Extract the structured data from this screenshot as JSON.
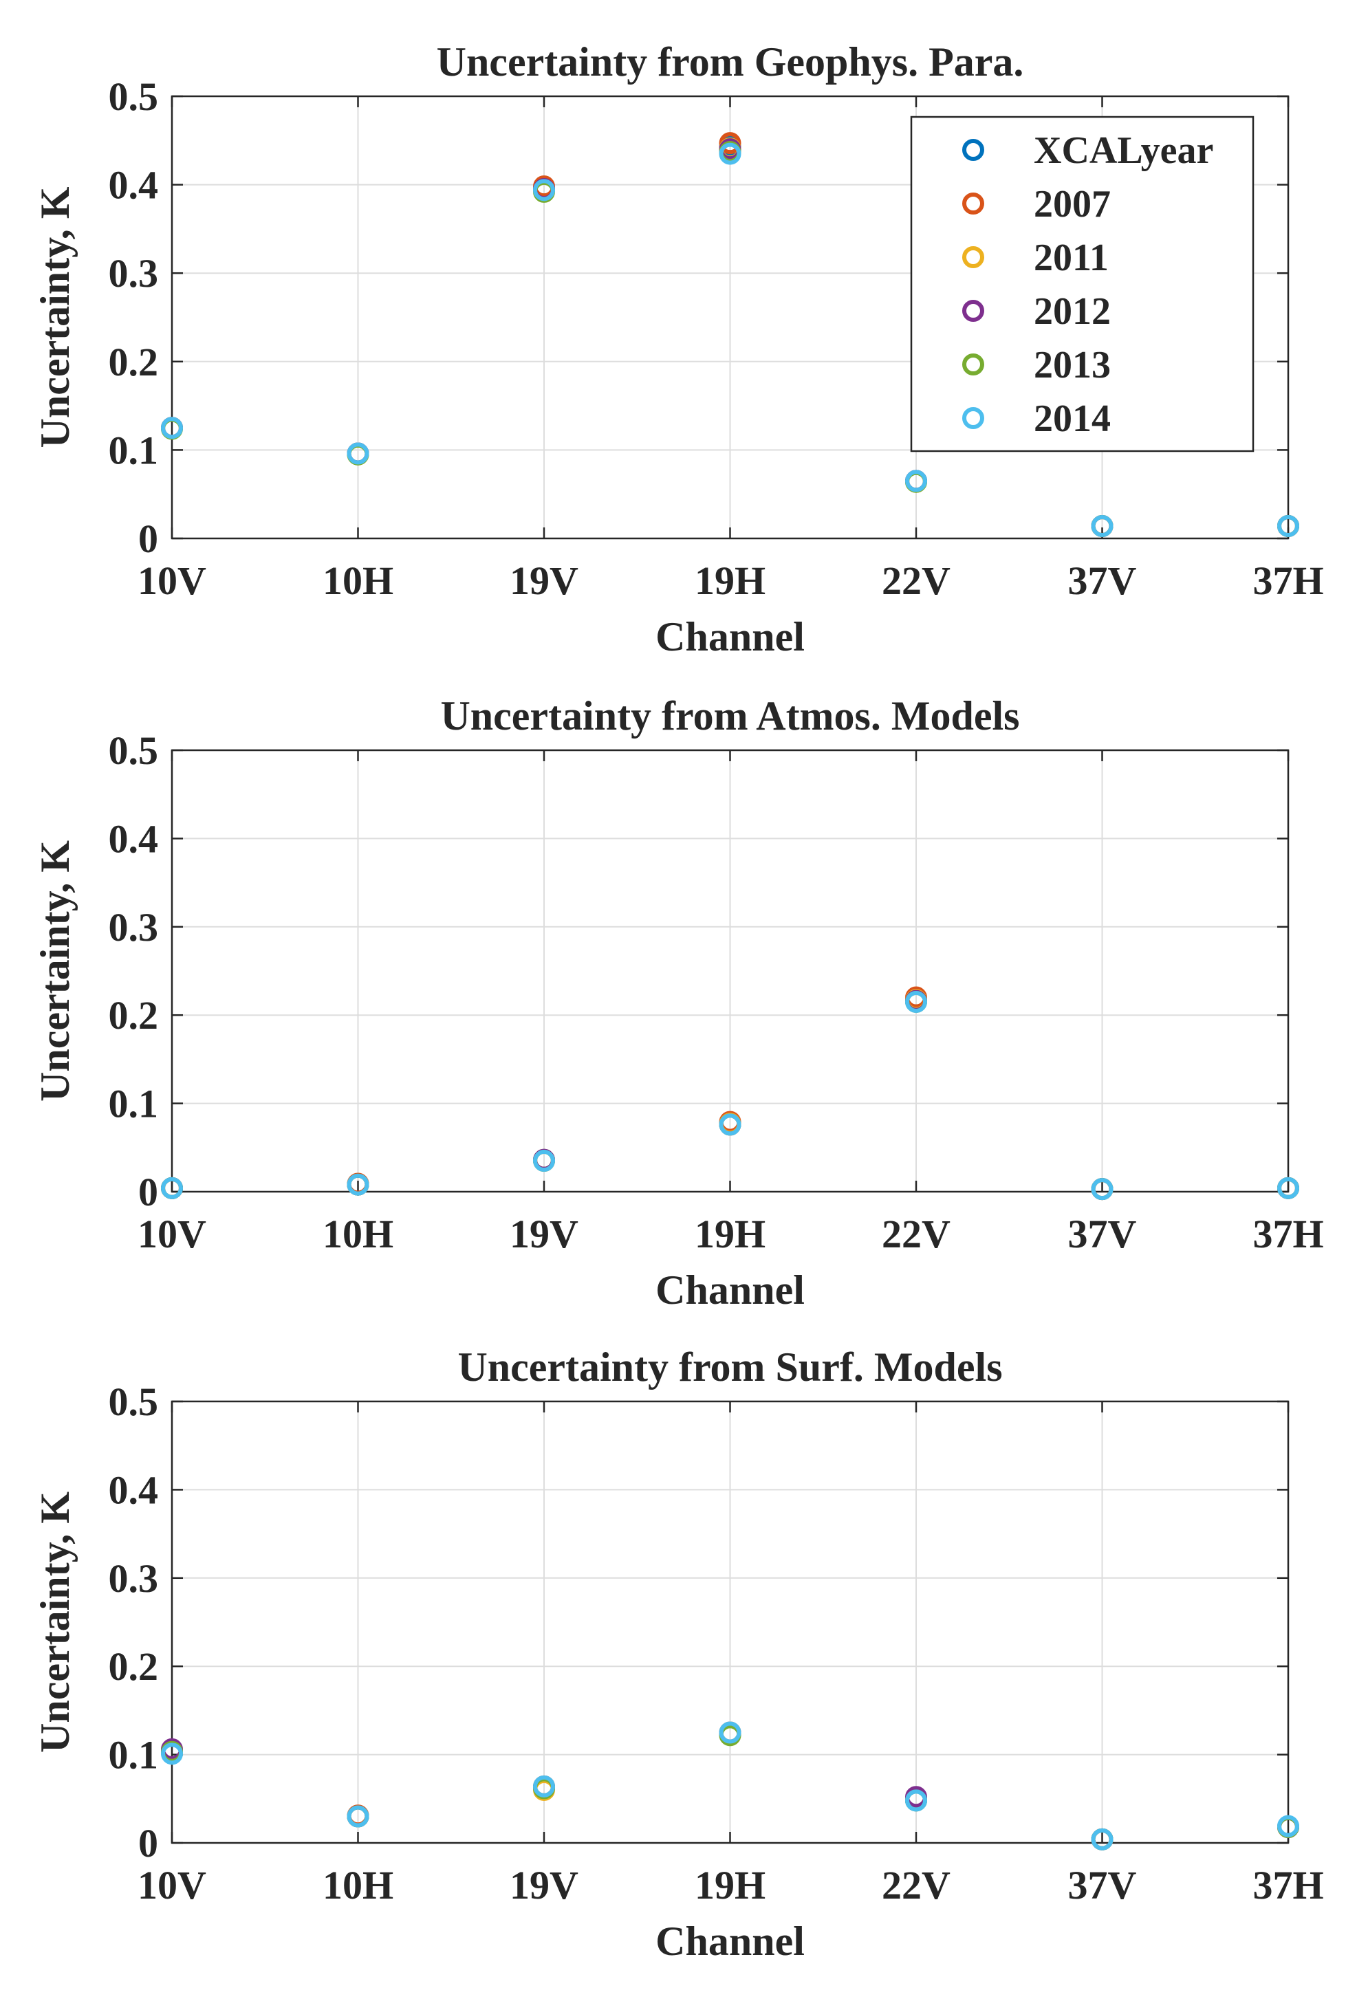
{
  "chart_data": [
    {
      "type": "scatter",
      "title": "Uncertainty from Geophys. Para.",
      "xlabel": "Channel",
      "ylabel": "Uncertainty, K",
      "categories": [
        "10V",
        "10H",
        "19V",
        "19H",
        "22V",
        "37V",
        "37H"
      ],
      "ylim": [
        0,
        0.5
      ],
      "yticks": [
        "0",
        "0.1",
        "0.2",
        "0.3",
        "0.4",
        "0.5"
      ],
      "grid": true,
      "legend": "top-right",
      "series": [
        {
          "name": "XCALyear",
          "color": "#0072BD",
          "values": [
            0.125,
            0.096,
            0.395,
            0.443,
            0.065,
            0.014,
            0.014
          ]
        },
        {
          "name": "2007",
          "color": "#D95319",
          "values": [
            0.125,
            0.096,
            0.398,
            0.447,
            0.065,
            0.014,
            0.014
          ]
        },
        {
          "name": "2011",
          "color": "#EDB120",
          "values": [
            0.125,
            0.095,
            0.394,
            0.441,
            0.064,
            0.014,
            0.014
          ]
        },
        {
          "name": "2012",
          "color": "#7E2F8E",
          "values": [
            0.125,
            0.096,
            0.395,
            0.44,
            0.065,
            0.014,
            0.014
          ]
        },
        {
          "name": "2013",
          "color": "#77AC30",
          "values": [
            0.124,
            0.095,
            0.392,
            0.437,
            0.064,
            0.014,
            0.014
          ]
        },
        {
          "name": "2014",
          "color": "#4DBEEE",
          "values": [
            0.125,
            0.096,
            0.394,
            0.435,
            0.065,
            0.014,
            0.014
          ]
        }
      ]
    },
    {
      "type": "scatter",
      "title": "Uncertainty from Atmos. Models",
      "xlabel": "Channel",
      "ylabel": "Uncertainty, K",
      "categories": [
        "10V",
        "10H",
        "19V",
        "19H",
        "22V",
        "37V",
        "37H"
      ],
      "ylim": [
        0,
        0.5
      ],
      "yticks": [
        "0",
        "0.1",
        "0.2",
        "0.3",
        "0.4",
        "0.5"
      ],
      "grid": true,
      "series": [
        {
          "name": "XCALyear",
          "color": "#0072BD",
          "values": [
            0.004,
            0.008,
            0.036,
            0.077,
            0.216,
            0.003,
            0.004
          ]
        },
        {
          "name": "2007",
          "color": "#D95319",
          "values": [
            0.004,
            0.009,
            0.036,
            0.079,
            0.22,
            0.003,
            0.004
          ]
        },
        {
          "name": "2011",
          "color": "#EDB120",
          "values": [
            0.004,
            0.008,
            0.035,
            0.077,
            0.217,
            0.003,
            0.004
          ]
        },
        {
          "name": "2012",
          "color": "#7E2F8E",
          "values": [
            0.004,
            0.008,
            0.036,
            0.076,
            0.216,
            0.003,
            0.004
          ]
        },
        {
          "name": "2013",
          "color": "#77AC30",
          "values": [
            0.004,
            0.008,
            0.035,
            0.076,
            0.215,
            0.003,
            0.004
          ]
        },
        {
          "name": "2014",
          "color": "#4DBEEE",
          "values": [
            0.004,
            0.008,
            0.035,
            0.076,
            0.215,
            0.003,
            0.004
          ]
        }
      ]
    },
    {
      "type": "scatter",
      "title": "Uncertainty from Surf. Models",
      "xlabel": "Channel",
      "ylabel": "Uncertainty, K",
      "categories": [
        "10V",
        "10H",
        "19V",
        "19H",
        "22V",
        "37V",
        "37H"
      ],
      "ylim": [
        0,
        0.5
      ],
      "yticks": [
        "0",
        "0.1",
        "0.2",
        "0.3",
        "0.4",
        "0.5"
      ],
      "grid": true,
      "series": [
        {
          "name": "XCALyear",
          "color": "#0072BD",
          "values": [
            0.102,
            0.03,
            0.063,
            0.124,
            0.048,
            0.004,
            0.018
          ]
        },
        {
          "name": "2007",
          "color": "#D95319",
          "values": [
            0.104,
            0.031,
            0.064,
            0.125,
            0.05,
            0.004,
            0.018
          ]
        },
        {
          "name": "2011",
          "color": "#EDB120",
          "values": [
            0.102,
            0.03,
            0.06,
            0.123,
            0.049,
            0.004,
            0.018
          ]
        },
        {
          "name": "2012",
          "color": "#7E2F8E",
          "values": [
            0.106,
            0.03,
            0.063,
            0.124,
            0.052,
            0.004,
            0.018
          ]
        },
        {
          "name": "2013",
          "color": "#77AC30",
          "values": [
            0.103,
            0.03,
            0.062,
            0.122,
            0.048,
            0.004,
            0.018
          ]
        },
        {
          "name": "2014",
          "color": "#4DBEEE",
          "values": [
            0.101,
            0.03,
            0.064,
            0.125,
            0.048,
            0.004,
            0.019
          ]
        }
      ]
    }
  ]
}
